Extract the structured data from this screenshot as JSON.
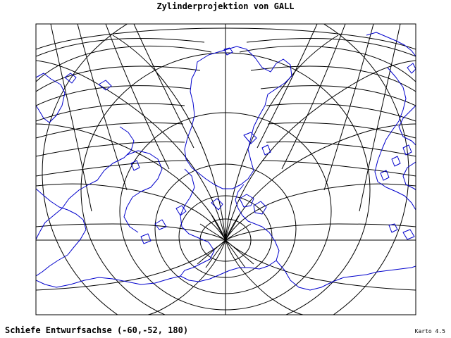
{
  "map": {
    "title": "Zylinderprojektion von GALL",
    "subtitle": "Schiefe Entwurfsachse (-60,-52, 180)",
    "credit": "Karto 4.5",
    "colors": {
      "graticule": "#000000",
      "coast": "#0000cc",
      "frame": "#000000",
      "background": "#ffffff"
    }
  }
}
